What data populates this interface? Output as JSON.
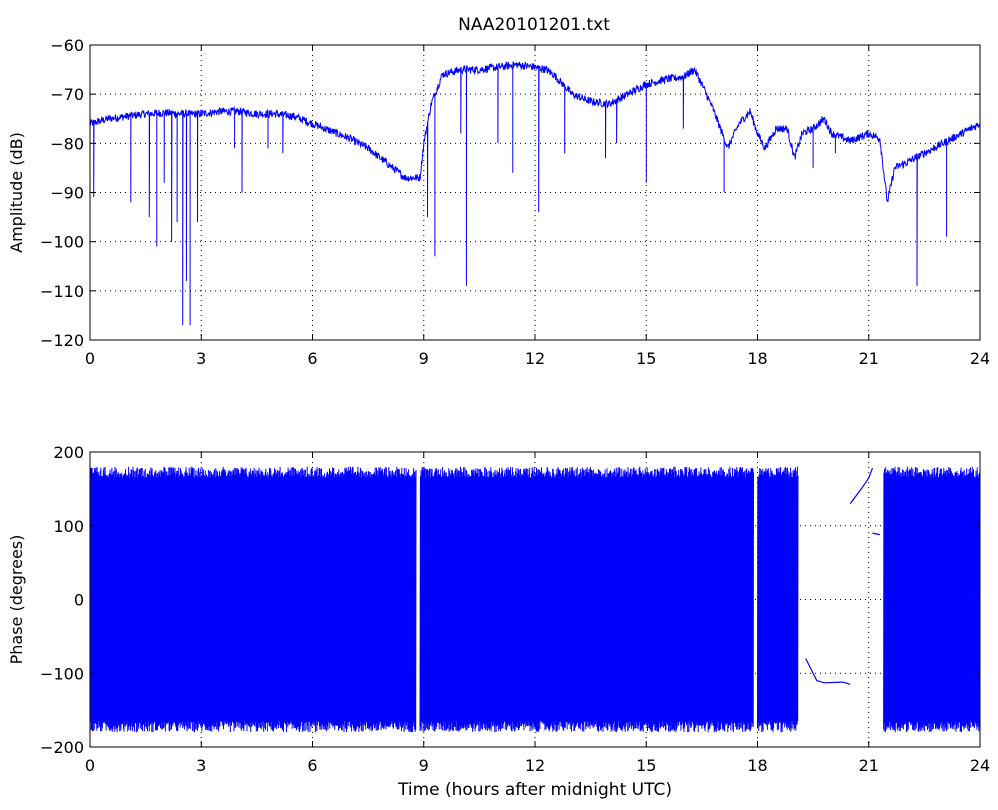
{
  "title": "NAA20101201.txt",
  "colors": {
    "line": "#0000ff",
    "axes": "#000000",
    "grid": "#000000",
    "background": "#ffffff"
  },
  "chart_data": [
    {
      "type": "line",
      "ylabel": "Amplitude (dB)",
      "xlabel": "",
      "xlim": [
        0,
        24
      ],
      "ylim": [
        -120,
        -60
      ],
      "xticks": [
        0,
        3,
        6,
        9,
        12,
        15,
        18,
        21,
        24
      ],
      "yticks": [
        -120,
        -110,
        -100,
        -90,
        -80,
        -70,
        -60
      ],
      "grid": true,
      "series": [
        {
          "baseline": [
            [
              0,
              -76
            ],
            [
              0.5,
              -75
            ],
            [
              1,
              -74.5
            ],
            [
              1.5,
              -74
            ],
            [
              2,
              -73.8
            ],
            [
              2.5,
              -74
            ],
            [
              3,
              -74
            ],
            [
              3.5,
              -73.5
            ],
            [
              4,
              -73.5
            ],
            [
              4.5,
              -74
            ],
            [
              5,
              -74
            ],
            [
              5.5,
              -74.5
            ],
            [
              6,
              -76
            ],
            [
              6.5,
              -77.5
            ],
            [
              7,
              -79
            ],
            [
              7.5,
              -81
            ],
            [
              8,
              -84
            ],
            [
              8.5,
              -87
            ],
            [
              8.9,
              -87
            ],
            [
              9,
              -80
            ],
            [
              9.2,
              -72
            ],
            [
              9.5,
              -66
            ],
            [
              10,
              -65
            ],
            [
              10.5,
              -65
            ],
            [
              11,
              -64.5
            ],
            [
              11.5,
              -64
            ],
            [
              12,
              -64.5
            ],
            [
              12.3,
              -65
            ],
            [
              12.5,
              -66
            ],
            [
              13,
              -70
            ],
            [
              13.5,
              -71.5
            ],
            [
              14,
              -72
            ],
            [
              14.5,
              -70
            ],
            [
              15,
              -68
            ],
            [
              15.5,
              -67
            ],
            [
              16,
              -66.5
            ],
            [
              16.3,
              -65
            ],
            [
              16.5,
              -68
            ],
            [
              16.8,
              -73
            ],
            [
              17,
              -77
            ],
            [
              17.2,
              -81
            ],
            [
              17.5,
              -76
            ],
            [
              17.8,
              -73.5
            ],
            [
              18,
              -78
            ],
            [
              18.2,
              -81
            ],
            [
              18.5,
              -77
            ],
            [
              18.8,
              -77
            ],
            [
              19,
              -83
            ],
            [
              19.2,
              -78
            ],
            [
              19.5,
              -77
            ],
            [
              19.8,
              -75
            ],
            [
              20,
              -78
            ],
            [
              20.5,
              -79.5
            ],
            [
              21,
              -78
            ],
            [
              21.3,
              -79
            ],
            [
              21.5,
              -92
            ],
            [
              21.7,
              -85
            ],
            [
              22,
              -84
            ],
            [
              22.5,
              -82
            ],
            [
              23,
              -80
            ],
            [
              23.5,
              -78
            ],
            [
              24,
              -76
            ]
          ],
          "dips": [
            [
              0.1,
              -91
            ],
            [
              1.1,
              -92
            ],
            [
              1.6,
              -95
            ],
            [
              1.8,
              -101
            ],
            [
              2.0,
              -88
            ],
            [
              2.2,
              -100
            ],
            [
              2.35,
              -96
            ],
            [
              2.5,
              -117
            ],
            [
              2.6,
              -108
            ],
            [
              2.7,
              -117
            ],
            [
              2.9,
              -96
            ],
            [
              3.9,
              -81
            ],
            [
              4.1,
              -90
            ],
            [
              4.8,
              -81
            ],
            [
              5.2,
              -82
            ],
            [
              9.1,
              -95
            ],
            [
              9.3,
              -103
            ],
            [
              10.0,
              -78
            ],
            [
              10.15,
              -109
            ],
            [
              11.0,
              -80
            ],
            [
              11.4,
              -86
            ],
            [
              12.1,
              -94
            ],
            [
              12.8,
              -82
            ],
            [
              13.9,
              -83
            ],
            [
              14.2,
              -80
            ],
            [
              15.0,
              -88
            ],
            [
              16.0,
              -77
            ],
            [
              17.1,
              -90
            ],
            [
              19.5,
              -85
            ],
            [
              20.1,
              -82
            ],
            [
              22.3,
              -109
            ],
            [
              23.1,
              -99
            ]
          ]
        }
      ]
    },
    {
      "type": "line",
      "ylabel": "Phase (degrees)",
      "xlabel": "Time (hours after midnight UTC)",
      "xlim": [
        0,
        24
      ],
      "ylim": [
        -200,
        200
      ],
      "xticks": [
        0,
        3,
        6,
        9,
        12,
        15,
        18,
        21,
        24
      ],
      "yticks": [
        -200,
        -100,
        0,
        100,
        200
      ],
      "grid": true,
      "series": [
        {
          "wrap_range": [
            -180,
            180
          ],
          "wrap_segments": [
            [
              0,
              8.8
            ],
            [
              8.9,
              17.9
            ],
            [
              18.0,
              19.1
            ],
            [
              21.4,
              24
            ]
          ],
          "flat_segments": [
            [
              [
                18.0,
                110
              ],
              [
                18.3,
                105
              ]
            ],
            [
              [
                19.3,
                -80
              ],
              [
                19.6,
                -110
              ],
              [
                19.8,
                -113
              ],
              [
                20.3,
                -112
              ],
              [
                20.5,
                -115
              ]
            ],
            [
              [
                20.5,
                130
              ],
              [
                20.8,
                150
              ],
              [
                21.0,
                165
              ],
              [
                21.1,
                178
              ]
            ],
            [
              [
                21.1,
                90
              ],
              [
                21.3,
                88
              ]
            ],
            [
              [
                21.6,
                -30
              ],
              [
                21.8,
                -60
              ],
              [
                22.0,
                -100
              ]
            ]
          ]
        }
      ]
    }
  ]
}
